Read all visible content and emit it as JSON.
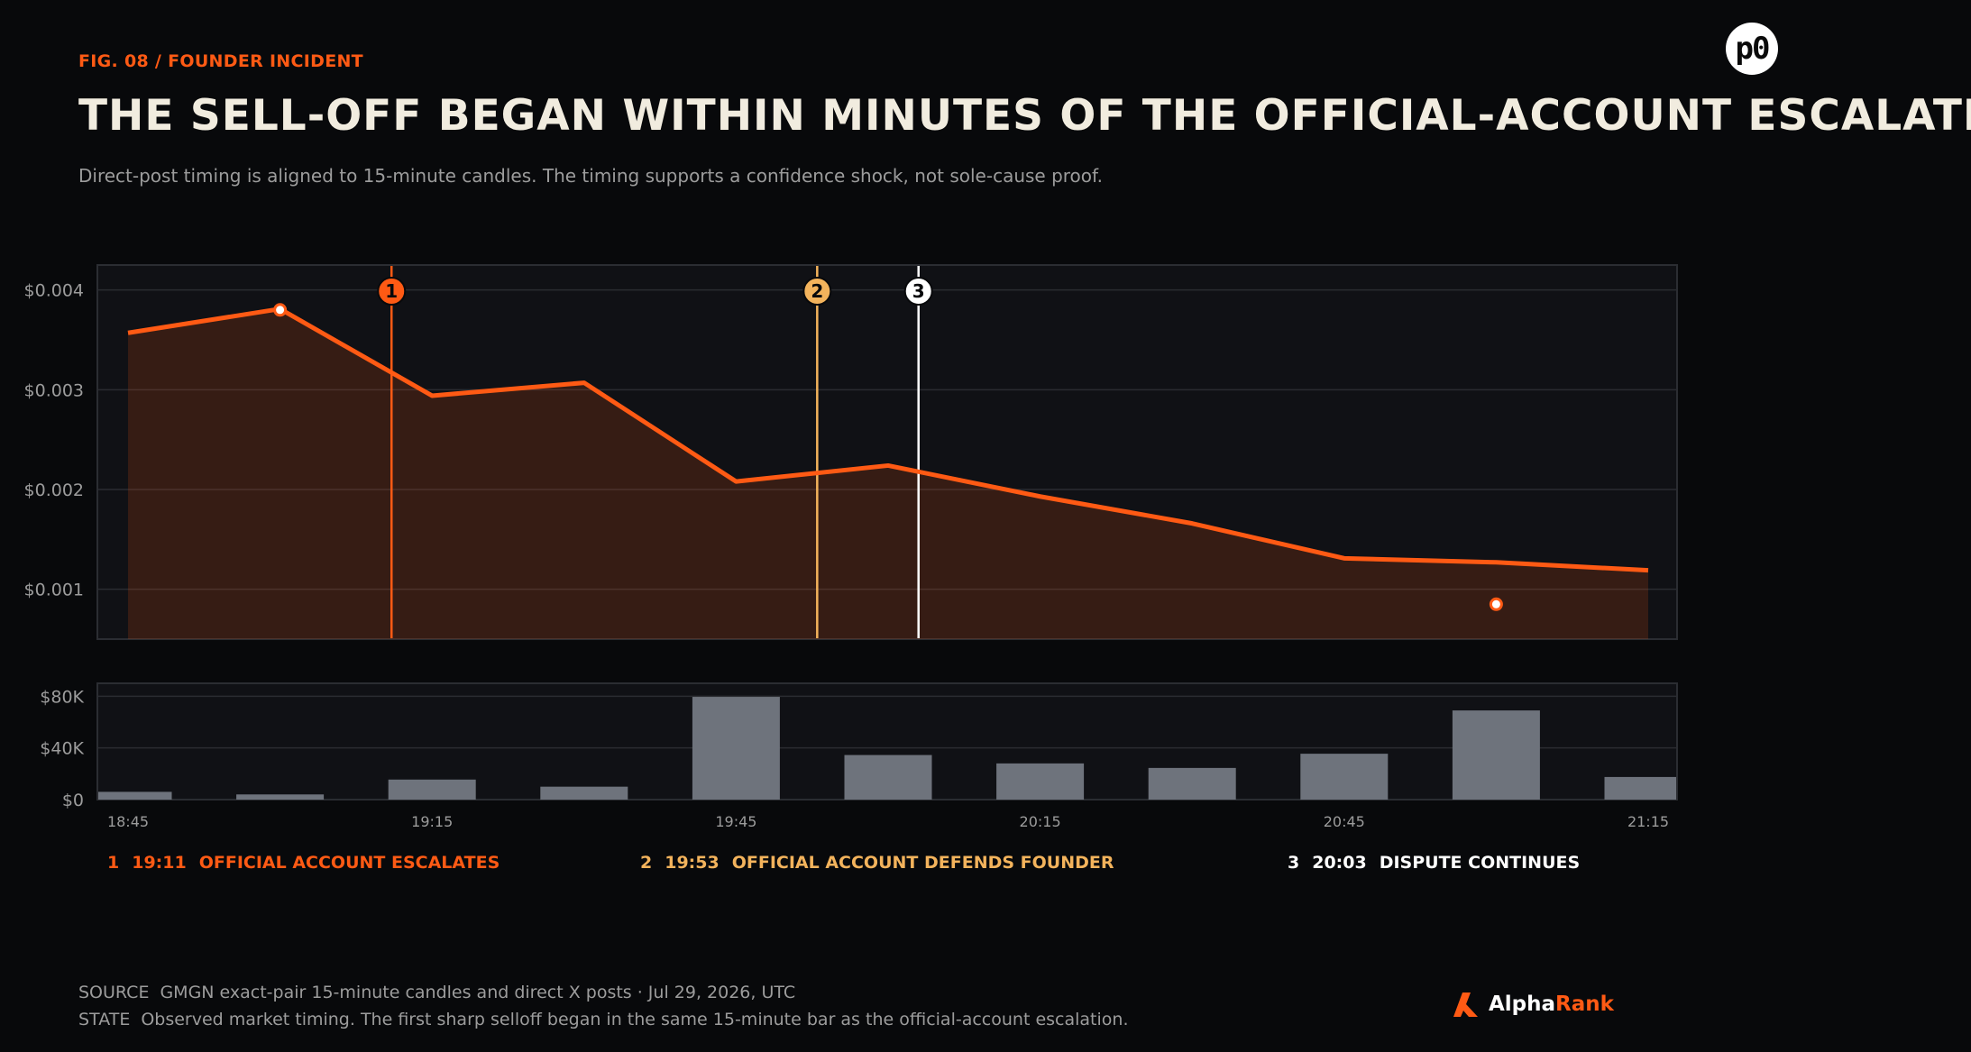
{
  "header": {
    "fig_label": "FIG. 08 / FOUNDER INCIDENT",
    "title": "THE SELL-OFF BEGAN WITHIN MINUTES OF THE OFFICIAL-ACCOUNT ESCALATION",
    "subtitle": "Direct-post timing is aligned to 15-minute candles. The timing supports a confidence shock, not sole-cause proof.",
    "badge_text": "p0"
  },
  "colors": {
    "accent": "#ff5a14",
    "event1": "#ff5a14",
    "event2": "#f3b35c",
    "event3": "#ffffff",
    "volume_bar": "#6e737c",
    "panel_bg": "#101115",
    "background": "#08090b"
  },
  "chart_data": {
    "type": "line",
    "x": [
      "18:45",
      "19:00",
      "19:15",
      "19:30",
      "19:45",
      "20:00",
      "20:15",
      "20:30",
      "20:45",
      "21:00",
      "21:15"
    ],
    "x_tick_labels": [
      "18:45",
      "19:15",
      "19:45",
      "20:15",
      "20:45",
      "21:15"
    ],
    "series": [
      {
        "values": [
          0.00357,
          0.00381,
          0.00294,
          0.00307,
          0.00208,
          0.00224,
          0.00193,
          0.00166,
          0.00131,
          0.00127,
          0.00119
        ]
      }
    ],
    "price_ylim": [
      0.0005,
      0.00425
    ],
    "price_ticks": [
      0.001,
      0.002,
      0.003,
      0.004
    ],
    "price_tick_labels": [
      "$0.001",
      "$0.002",
      "$0.003",
      "$0.004"
    ],
    "markers": [
      {
        "x": "19:00",
        "value": 0.0038
      },
      {
        "x": "21:00",
        "value": 0.00085
      }
    ],
    "volume": {
      "type": "bar",
      "values": [
        6000,
        4000,
        15500,
        10000,
        79500,
        34500,
        28000,
        24500,
        35500,
        69000,
        17500
      ],
      "ylim": [
        0,
        90000
      ],
      "ticks": [
        0,
        40000,
        80000
      ],
      "tick_labels": [
        "$0",
        "$40K",
        "$80K"
      ]
    },
    "events": [
      {
        "id": "1",
        "time": "19:11",
        "label": "OFFICIAL ACCOUNT ESCALATES",
        "color": "#ff5a14"
      },
      {
        "id": "2",
        "time": "19:53",
        "label": "OFFICIAL ACCOUNT DEFENDS FOUNDER",
        "color": "#f3b35c"
      },
      {
        "id": "3",
        "time": "20:03",
        "label": "DISPUTE CONTINUES",
        "color": "#ffffff"
      }
    ],
    "grid": true
  },
  "footer": {
    "source_key": "SOURCE",
    "source_text": "GMGN exact-pair 15-minute candles and direct X posts · Jul 29, 2026, UTC",
    "state_key": "STATE",
    "state_text": "Observed market timing. The first sharp selloff began in the same 15-minute bar as the official-account escalation.",
    "logo_part1": "Alpha",
    "logo_part2": "Rank"
  }
}
